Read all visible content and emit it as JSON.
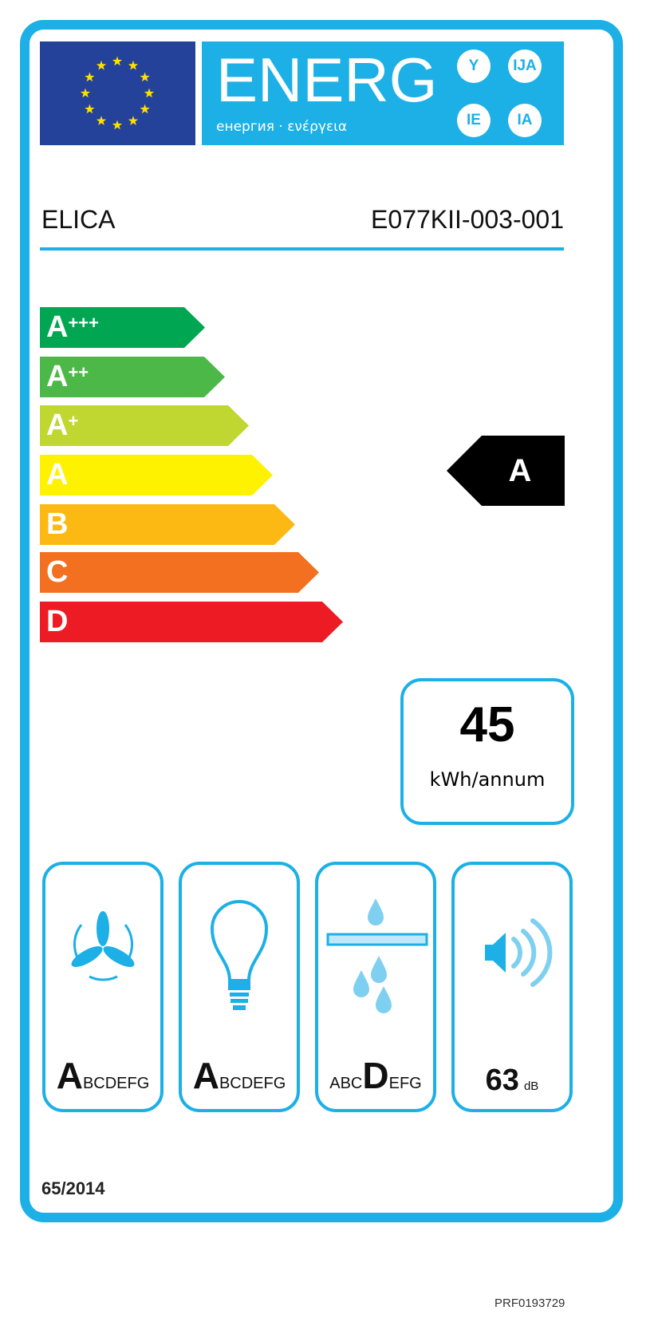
{
  "header": {
    "energy_word": "ENERG",
    "subtitle": "енергия · ενέργεια",
    "language_circles": [
      "Y",
      "IJA",
      "IE",
      "IA"
    ]
  },
  "supplier": "ELICA",
  "model": "E077KII-003-001",
  "scale": [
    {
      "label": "A",
      "plus": "+++",
      "color": "#00a651"
    },
    {
      "label": "A",
      "plus": "++",
      "color": "#4cb848"
    },
    {
      "label": "A",
      "plus": "+",
      "color": "#bfd730"
    },
    {
      "label": "A",
      "plus": "",
      "color": "#fff200"
    },
    {
      "label": "B",
      "plus": "",
      "color": "#fdb913"
    },
    {
      "label": "C",
      "plus": "",
      "color": "#f37021"
    },
    {
      "label": "D",
      "plus": "",
      "color": "#ed1c24"
    }
  ],
  "energy_class": "A",
  "consumption": {
    "value": "45",
    "unit": "kWh/annum"
  },
  "pictograms": [
    {
      "icon": "fan-icon",
      "pre": "",
      "class": "A",
      "post": "BCDEFG"
    },
    {
      "icon": "light-bulb-icon",
      "pre": "",
      "class": "A",
      "post": "BCDEFG"
    },
    {
      "icon": "grease-filter-icon",
      "pre": "ABC",
      "class": "D",
      "post": "EFG"
    }
  ],
  "noise": {
    "value": "63",
    "unit": "dB",
    "icon": "speaker-icon"
  },
  "regulation": "65/2014",
  "reference": "PRF0193729",
  "colors": {
    "frame": "#1cb0e6",
    "eu_flag": "#24429a",
    "stars": "#ffde00"
  }
}
